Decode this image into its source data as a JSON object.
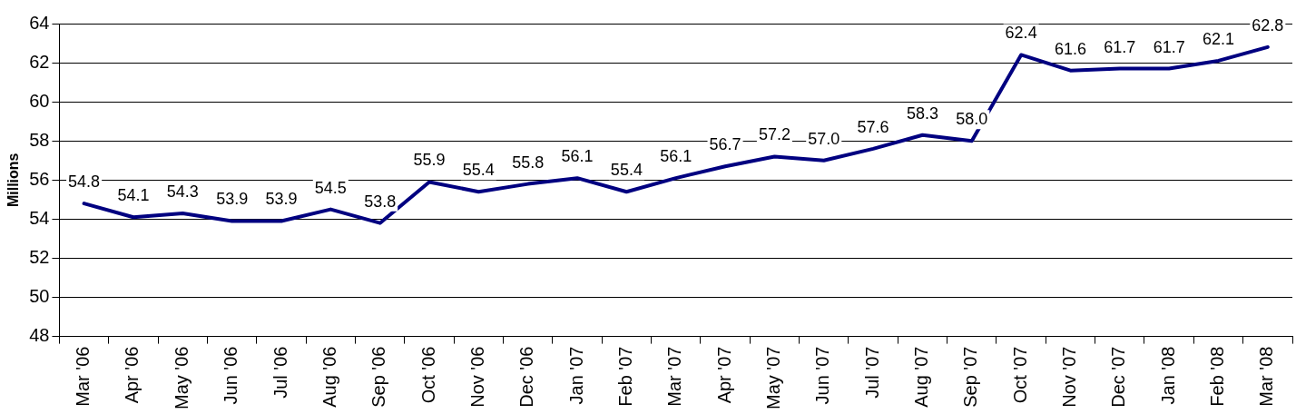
{
  "chart_data": {
    "type": "line",
    "ylabel": "Millions",
    "categories": [
      "Mar '06",
      "Apr '06",
      "May '06",
      "Jun '06",
      "Jul '06",
      "Aug '06",
      "Sep '06",
      "Oct '06",
      "Nov '06",
      "Dec '06",
      "Jan '07",
      "Feb '07",
      "Mar '07",
      "Apr '07",
      "May '07",
      "Jun '07",
      "Jul '07",
      "Aug '07",
      "Sep '07",
      "Oct '07",
      "Nov '07",
      "Dec '07",
      "Jan '08",
      "Feb '08",
      "Mar '08"
    ],
    "series": [
      {
        "color": "#000080",
        "values": [
          54.8,
          54.1,
          54.3,
          53.9,
          53.9,
          54.5,
          53.8,
          55.9,
          55.4,
          55.8,
          56.1,
          55.4,
          56.1,
          56.7,
          57.2,
          57.0,
          57.6,
          58.3,
          58.0,
          62.4,
          61.6,
          61.7,
          61.7,
          62.1,
          62.8
        ],
        "value_labels": [
          "54.8",
          "54.1",
          "54.3",
          "53.9",
          "53.9",
          "54.5",
          "53.8",
          "55.9",
          "55.4",
          "55.8",
          "56.1",
          "55.4",
          "56.1",
          "56.7",
          "57.2",
          "57.0",
          "57.6",
          "58.3",
          "58.0",
          "62.4",
          "61.6",
          "61.7",
          "61.7",
          "62.1",
          "62.8"
        ]
      }
    ],
    "ylim": [
      48,
      64
    ],
    "yticks": [
      48,
      50,
      52,
      54,
      56,
      58,
      60,
      62,
      64
    ],
    "grid": "y",
    "legend": false,
    "marker": "none",
    "line_style": "solid"
  }
}
